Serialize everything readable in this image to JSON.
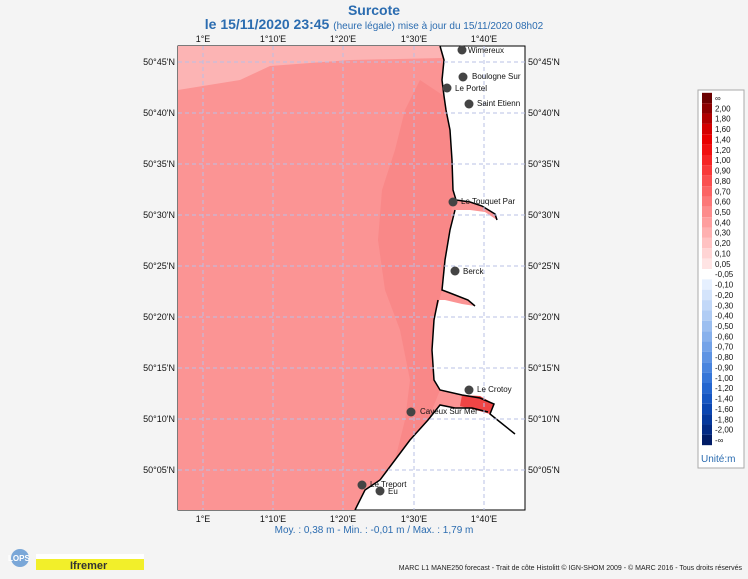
{
  "header": {
    "title": "Surcote",
    "date": "le 15/11/2020 23:45",
    "note": "(heure légale) mise à jour du 15/11/2020 08h02"
  },
  "axes": {
    "lon_ticks": [
      "1°E",
      "1°10'E",
      "1°20'E",
      "1°30'E",
      "1°40'E"
    ],
    "lat_ticks": [
      "50°45'N",
      "50°40'N",
      "50°35'N",
      "50°30'N",
      "50°25'N",
      "50°20'N",
      "50°15'N",
      "50°10'N",
      "50°05'N"
    ]
  },
  "places": [
    {
      "name": "Wimereux"
    },
    {
      "name": "Boulogne Sur"
    },
    {
      "name": "Le Portel"
    },
    {
      "name": "Saint Etienn"
    },
    {
      "name": "Le Touquet Par"
    },
    {
      "name": "Berck"
    },
    {
      "name": "Le Crotoy"
    },
    {
      "name": "Cayeux Sur Mer"
    },
    {
      "name": "Le Treport"
    },
    {
      "name": "Eu"
    }
  ],
  "legend": {
    "unit": "Unité:m",
    "levels": [
      {
        "label": "∞",
        "color": "#6b0000"
      },
      {
        "label": "2,00",
        "color": "#8b0000"
      },
      {
        "label": "1,80",
        "color": "#b00000"
      },
      {
        "label": "1,60",
        "color": "#d40000"
      },
      {
        "label": "1,40",
        "color": "#e80000"
      },
      {
        "label": "1,20",
        "color": "#f01010"
      },
      {
        "label": "1,00",
        "color": "#f52525"
      },
      {
        "label": "0,90",
        "color": "#f83a3a"
      },
      {
        "label": "0,80",
        "color": "#fa5050"
      },
      {
        "label": "0,70",
        "color": "#fb6464"
      },
      {
        "label": "0,60",
        "color": "#fc7878"
      },
      {
        "label": "0,50",
        "color": "#fd8c8c"
      },
      {
        "label": "0,40",
        "color": "#fe9e9e"
      },
      {
        "label": "0,30",
        "color": "#feb0b0"
      },
      {
        "label": "0,20",
        "color": "#ffc2c2"
      },
      {
        "label": "0,10",
        "color": "#ffd4d4"
      },
      {
        "label": "0,05",
        "color": "#ffe4e4"
      },
      {
        "label": "-0,05",
        "color": "#ffffff"
      },
      {
        "label": "-0,10",
        "color": "#e6f0ff"
      },
      {
        "label": "-0,20",
        "color": "#d4e4fb"
      },
      {
        "label": "-0,30",
        "color": "#c2d8f8"
      },
      {
        "label": "-0,40",
        "color": "#b0ccf4"
      },
      {
        "label": "-0,50",
        "color": "#9cbff0"
      },
      {
        "label": "-0,60",
        "color": "#88b1ec"
      },
      {
        "label": "-0,70",
        "color": "#74a3e8"
      },
      {
        "label": "-0,80",
        "color": "#5f94e3"
      },
      {
        "label": "-0,90",
        "color": "#4a85de"
      },
      {
        "label": "-1,00",
        "color": "#3676d8"
      },
      {
        "label": "-1,20",
        "color": "#2466cf"
      },
      {
        "label": "-1,40",
        "color": "#1656c2"
      },
      {
        "label": "-1,60",
        "color": "#0b46b1"
      },
      {
        "label": "-1,80",
        "color": "#05389c"
      },
      {
        "label": "-2,00",
        "color": "#022a84"
      },
      {
        "label": "-∞",
        "color": "#011c66"
      }
    ]
  },
  "stats": "Moy. : 0,38 m  -  Min. : -0,01 m / Max. : 1,79 m",
  "credit": "MARC L1 MANE250 forecast - Trait de côte Histolitt © IGN-SHOM 2009 - © MARC 2016 - Tous droits réservés",
  "logos": {
    "lops": "LOPS",
    "ifremer": "Ifremer"
  },
  "colors": {
    "sea_main": "#fb9494",
    "sea_near": "#f98888",
    "sea_corner": "#fcb4b4",
    "bay": "#f04545",
    "title": "#2b6cb0"
  }
}
